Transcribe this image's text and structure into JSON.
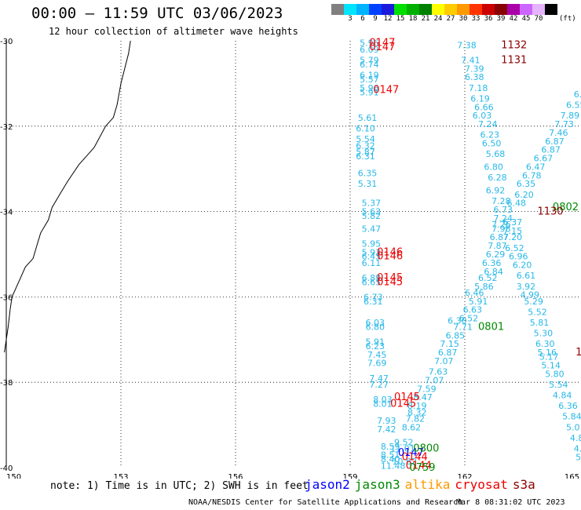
{
  "header": {
    "title": "00:00 – 11:59 UTC 03/06/2023",
    "subtitle": "12 hour collection of altimeter wave heights"
  },
  "legend": {
    "unit": "(ft)",
    "bins": [
      {
        "label": "",
        "color": "#808080"
      },
      {
        "label": "3",
        "color": "#00e5ff"
      },
      {
        "label": "6",
        "color": "#00b4ff"
      },
      {
        "label": "9",
        "color": "#0040ff"
      },
      {
        "label": "12",
        "color": "#1a1adc"
      },
      {
        "label": "15",
        "color": "#00e000"
      },
      {
        "label": "18",
        "color": "#00b000"
      },
      {
        "label": "21",
        "color": "#008000"
      },
      {
        "label": "24",
        "color": "#ffff00"
      },
      {
        "label": "27",
        "color": "#ffcc00"
      },
      {
        "label": "30",
        "color": "#ff9900"
      },
      {
        "label": "33",
        "color": "#ff3300"
      },
      {
        "label": "36",
        "color": "#cc0000"
      },
      {
        "label": "39",
        "color": "#880000"
      },
      {
        "label": "42",
        "color": "#aa00aa"
      },
      {
        "label": "45",
        "color": "#cc66ff"
      },
      {
        "label": "70",
        "color": "#e6b3ff"
      },
      {
        "label": "",
        "color": "#000000"
      }
    ]
  },
  "axes": {
    "lon_ticks": [
      "150",
      "153",
      "156",
      "159",
      "162",
      "165"
    ],
    "lat_ticks": [
      "-30",
      "-32",
      "-34",
      "-36",
      "-38",
      "-40"
    ]
  },
  "map": {
    "lon_range": [
      150,
      165
    ],
    "lat_range": [
      -40,
      -30
    ],
    "coastline": [
      [
        153.25,
        -30
      ],
      [
        153.2,
        -30.3
      ],
      [
        153.0,
        -31.0
      ],
      [
        152.9,
        -31.5
      ],
      [
        152.8,
        -31.8
      ],
      [
        152.6,
        -32.0
      ],
      [
        152.3,
        -32.5
      ],
      [
        152.2,
        -32.6
      ],
      [
        151.9,
        -32.9
      ],
      [
        151.6,
        -33.3
      ],
      [
        151.4,
        -33.6
      ],
      [
        151.2,
        -33.9
      ],
      [
        151.1,
        -34.2
      ],
      [
        150.9,
        -34.5
      ],
      [
        150.8,
        -34.8
      ],
      [
        150.7,
        -35.1
      ],
      [
        150.5,
        -35.3
      ],
      [
        150.3,
        -35.7
      ],
      [
        150.15,
        -36.0
      ],
      [
        150.1,
        -36.3
      ],
      [
        150.05,
        -36.7
      ],
      [
        150.0,
        -37.0
      ],
      [
        149.95,
        -37.3
      ]
    ],
    "colors": {
      "cyan_obs": "#27b8e8",
      "time_red": "#ee0000",
      "time_darkred": "#8b0000",
      "time_green": "#008800",
      "time_blue": "#0000ff",
      "time_black": "#000000"
    },
    "observations": [
      {
        "lon": 159.25,
        "lat": -30.05,
        "text": "5.96"
      },
      {
        "lon": 159.25,
        "lat": -30.2,
        "text": "6.09"
      },
      {
        "lon": 159.25,
        "lat": -30.45,
        "text": "5.79"
      },
      {
        "lon": 159.25,
        "lat": -30.55,
        "text": "6.74"
      },
      {
        "lon": 159.25,
        "lat": -30.8,
        "text": "6.19"
      },
      {
        "lon": 159.25,
        "lat": -30.9,
        "text": "5.57"
      },
      {
        "lon": 159.25,
        "lat": -31.1,
        "text": "5.96"
      },
      {
        "lon": 159.25,
        "lat": -31.2,
        "text": "5.91"
      },
      {
        "lon": 159.2,
        "lat": -31.8,
        "text": "5.61"
      },
      {
        "lon": 159.15,
        "lat": -32.05,
        "text": "6.10"
      },
      {
        "lon": 159.15,
        "lat": -32.3,
        "text": "5.54"
      },
      {
        "lon": 159.15,
        "lat": -32.45,
        "text": "6.32"
      },
      {
        "lon": 159.15,
        "lat": -32.6,
        "text": "5.87"
      },
      {
        "lon": 159.15,
        "lat": -32.7,
        "text": "6.31"
      },
      {
        "lon": 159.2,
        "lat": -33.1,
        "text": "6.35"
      },
      {
        "lon": 159.2,
        "lat": -33.35,
        "text": "5.31"
      },
      {
        "lon": 159.3,
        "lat": -33.8,
        "text": "5.37"
      },
      {
        "lon": 159.3,
        "lat": -34.0,
        "text": "5.63"
      },
      {
        "lon": 159.3,
        "lat": -34.1,
        "text": "5.82"
      },
      {
        "lon": 159.3,
        "lat": -34.4,
        "text": "5.47"
      },
      {
        "lon": 159.3,
        "lat": -34.75,
        "text": "5.95"
      },
      {
        "lon": 159.3,
        "lat": -34.95,
        "text": "5.93"
      },
      {
        "lon": 159.3,
        "lat": -35.05,
        "text": "6.45"
      },
      {
        "lon": 159.3,
        "lat": -35.2,
        "text": "6.11"
      },
      {
        "lon": 159.3,
        "lat": -35.55,
        "text": "6.89"
      },
      {
        "lon": 159.3,
        "lat": -35.65,
        "text": "6.65"
      },
      {
        "lon": 159.35,
        "lat": -36.0,
        "text": "6.73"
      },
      {
        "lon": 159.35,
        "lat": -36.1,
        "text": "6.31"
      },
      {
        "lon": 159.4,
        "lat": -36.6,
        "text": "6.03"
      },
      {
        "lon": 159.4,
        "lat": -36.7,
        "text": "6.80"
      },
      {
        "lon": 159.4,
        "lat": -37.05,
        "text": "5.91"
      },
      {
        "lon": 159.4,
        "lat": -37.15,
        "text": "6.23"
      },
      {
        "lon": 159.45,
        "lat": -37.35,
        "text": "7.45"
      },
      {
        "lon": 159.45,
        "lat": -37.55,
        "text": "7.69"
      },
      {
        "lon": 159.5,
        "lat": -37.9,
        "text": "7.47"
      },
      {
        "lon": 159.5,
        "lat": -38.05,
        "text": "7.27"
      },
      {
        "lon": 159.6,
        "lat": -38.4,
        "text": "8.03"
      },
      {
        "lon": 159.6,
        "lat": -38.5,
        "text": "8.01"
      },
      {
        "lon": 159.7,
        "lat": -38.9,
        "text": "7.93"
      },
      {
        "lon": 159.7,
        "lat": -39.1,
        "text": "7.42"
      },
      {
        "lon": 159.8,
        "lat": -39.5,
        "text": "8.59"
      },
      {
        "lon": 159.8,
        "lat": -39.7,
        "text": "8.51"
      },
      {
        "lon": 159.8,
        "lat": -39.8,
        "text": "8.40"
      },
      {
        "lon": 159.8,
        "lat": -39.95,
        "text": "11.48"
      },
      {
        "lon": 160.15,
        "lat": -39.4,
        "text": "9.52"
      },
      {
        "lon": 160.05,
        "lat": -39.55,
        "text": "11.01"
      },
      {
        "lon": 160.1,
        "lat": -39.85,
        "text": "10.62"
      },
      {
        "lon": 160.35,
        "lat": -39.05,
        "text": "8.62"
      },
      {
        "lon": 160.45,
        "lat": -38.85,
        "text": "7.82"
      },
      {
        "lon": 160.5,
        "lat": -38.7,
        "text": "8.32"
      },
      {
        "lon": 160.5,
        "lat": -38.55,
        "text": "8.19"
      },
      {
        "lon": 160.65,
        "lat": -38.35,
        "text": "8.47"
      },
      {
        "lon": 160.75,
        "lat": -38.15,
        "text": "7.59"
      },
      {
        "lon": 160.95,
        "lat": -37.95,
        "text": "7.07"
      },
      {
        "lon": 161.05,
        "lat": -37.75,
        "text": "7.63"
      },
      {
        "lon": 161.2,
        "lat": -37.5,
        "text": "7.07"
      },
      {
        "lon": 161.3,
        "lat": -37.3,
        "text": "6.87"
      },
      {
        "lon": 161.35,
        "lat": -37.1,
        "text": "7.15"
      },
      {
        "lon": 161.5,
        "lat": -36.9,
        "text": "6.85"
      },
      {
        "lon": 161.7,
        "lat": -36.7,
        "text": "7.71"
      },
      {
        "lon": 161.55,
        "lat": -36.55,
        "text": "6.30"
      },
      {
        "lon": 161.85,
        "lat": -36.5,
        "text": "6.52"
      },
      {
        "lon": 161.95,
        "lat": -36.3,
        "text": "6.63"
      },
      {
        "lon": 162.1,
        "lat": -36.1,
        "text": "5.91"
      },
      {
        "lon": 162.0,
        "lat": -35.9,
        "text": "6.46"
      },
      {
        "lon": 162.25,
        "lat": -35.75,
        "text": "5.86"
      },
      {
        "lon": 162.35,
        "lat": -35.55,
        "text": "6.52"
      },
      {
        "lon": 162.5,
        "lat": -35.4,
        "text": "6.84"
      },
      {
        "lon": 162.45,
        "lat": -35.2,
        "text": "6.36"
      },
      {
        "lon": 162.55,
        "lat": -35.0,
        "text": "6.29"
      },
      {
        "lon": 162.6,
        "lat": -34.8,
        "text": "7.87"
      },
      {
        "lon": 162.65,
        "lat": -34.6,
        "text": "6.87"
      },
      {
        "lon": 162.7,
        "lat": -34.4,
        "text": "7.98"
      },
      {
        "lon": 162.7,
        "lat": -34.3,
        "text": "7.26"
      },
      {
        "lon": 162.75,
        "lat": -34.15,
        "text": "7.24"
      },
      {
        "lon": 162.75,
        "lat": -33.95,
        "text": "6.73"
      },
      {
        "lon": 162.7,
        "lat": -33.75,
        "text": "7.28"
      },
      {
        "lon": 162.55,
        "lat": -33.5,
        "text": "6.92"
      },
      {
        "lon": 162.6,
        "lat": -33.2,
        "text": "6.28"
      },
      {
        "lon": 162.5,
        "lat": -32.95,
        "text": "6.80"
      },
      {
        "lon": 162.55,
        "lat": -32.65,
        "text": "5.68"
      },
      {
        "lon": 162.45,
        "lat": -32.4,
        "text": "6.50"
      },
      {
        "lon": 162.4,
        "lat": -32.2,
        "text": "6.23"
      },
      {
        "lon": 162.35,
        "lat": -31.95,
        "text": "7.24"
      },
      {
        "lon": 162.2,
        "lat": -31.75,
        "text": "6.03"
      },
      {
        "lon": 162.25,
        "lat": -31.55,
        "text": "6.66"
      },
      {
        "lon": 162.15,
        "lat": -31.35,
        "text": "6.19"
      },
      {
        "lon": 162.1,
        "lat": -31.1,
        "text": "7.18"
      },
      {
        "lon": 162.0,
        "lat": -30.85,
        "text": "6.38"
      },
      {
        "lon": 162.0,
        "lat": -30.65,
        "text": "7.39"
      },
      {
        "lon": 161.9,
        "lat": -30.45,
        "text": "7.41"
      },
      {
        "lon": 161.8,
        "lat": -30.1,
        "text": "7.38"
      },
      {
        "lon": 163.0,
        "lat": -34.45,
        "text": "7.15"
      },
      {
        "lon": 163.0,
        "lat": -34.6,
        "text": "7.20"
      },
      {
        "lon": 163.05,
        "lat": -34.85,
        "text": "6.52"
      },
      {
        "lon": 163.15,
        "lat": -35.05,
        "text": "6.96"
      },
      {
        "lon": 163.25,
        "lat": -35.25,
        "text": "6.20"
      },
      {
        "lon": 163.35,
        "lat": -35.5,
        "text": "6.61"
      },
      {
        "lon": 163.35,
        "lat": -35.75,
        "text": "3.92"
      },
      {
        "lon": 163.45,
        "lat": -35.95,
        "text": "4.99"
      },
      {
        "lon": 163.55,
        "lat": -36.1,
        "text": "5.29"
      },
      {
        "lon": 163.65,
        "lat": -36.35,
        "text": "5.52"
      },
      {
        "lon": 163.7,
        "lat": -36.6,
        "text": "5.81"
      },
      {
        "lon": 163.8,
        "lat": -36.85,
        "text": "5.30"
      },
      {
        "lon": 163.85,
        "lat": -37.1,
        "text": "6.30"
      },
      {
        "lon": 163.9,
        "lat": -37.3,
        "text": "5.16"
      },
      {
        "lon": 163.95,
        "lat": -37.4,
        "text": "5.17"
      },
      {
        "lon": 164.0,
        "lat": -37.6,
        "text": "5.14"
      },
      {
        "lon": 164.1,
        "lat": -37.8,
        "text": "5.80"
      },
      {
        "lon": 164.2,
        "lat": -38.05,
        "text": "5.54"
      },
      {
        "lon": 164.3,
        "lat": -38.3,
        "text": "4.84"
      },
      {
        "lon": 164.45,
        "lat": -38.55,
        "text": "6.36"
      },
      {
        "lon": 164.55,
        "lat": -38.8,
        "text": "5.84"
      },
      {
        "lon": 164.65,
        "lat": -39.05,
        "text": "5.0"
      },
      {
        "lon": 164.75,
        "lat": -39.3,
        "text": "4.8"
      },
      {
        "lon": 164.85,
        "lat": -39.55,
        "text": "4."
      },
      {
        "lon": 164.9,
        "lat": -39.75,
        "text": "5."
      },
      {
        "lon": 163.0,
        "lat": -34.25,
        "text": "6.37"
      },
      {
        "lon": 163.1,
        "lat": -33.8,
        "text": "6.48"
      },
      {
        "lon": 163.3,
        "lat": -33.6,
        "text": "6.20"
      },
      {
        "lon": 163.35,
        "lat": -33.35,
        "text": "6.35"
      },
      {
        "lon": 163.5,
        "lat": -33.15,
        "text": "6.78"
      },
      {
        "lon": 163.6,
        "lat": -32.95,
        "text": "6.47"
      },
      {
        "lon": 163.8,
        "lat": -32.75,
        "text": "6.67"
      },
      {
        "lon": 164.0,
        "lat": -32.55,
        "text": "6.87"
      },
      {
        "lon": 164.1,
        "lat": -32.35,
        "text": "6.87"
      },
      {
        "lon": 164.2,
        "lat": -32.15,
        "text": "7.46"
      },
      {
        "lon": 164.35,
        "lat": -31.95,
        "text": "7.73"
      },
      {
        "lon": 164.5,
        "lat": -31.75,
        "text": "7.89"
      },
      {
        "lon": 164.65,
        "lat": -31.5,
        "text": "6.55"
      },
      {
        "lon": 164.85,
        "lat": -31.25,
        "text": "6."
      }
    ],
    "times": [
      {
        "lon": 159.5,
        "lat": -30.05,
        "text": "0147",
        "tone": "time_red"
      },
      {
        "lon": 159.5,
        "lat": -30.15,
        "text": "0147",
        "tone": "time_red"
      },
      {
        "lon": 159.6,
        "lat": -31.15,
        "text": "0147",
        "tone": "time_red"
      },
      {
        "lon": 159.7,
        "lat": -34.95,
        "text": "0146",
        "tone": "time_red"
      },
      {
        "lon": 159.7,
        "lat": -35.05,
        "text": "0146",
        "tone": "time_red"
      },
      {
        "lon": 159.7,
        "lat": -35.55,
        "text": "0145",
        "tone": "time_red"
      },
      {
        "lon": 159.7,
        "lat": -35.65,
        "text": "0145",
        "tone": "time_red"
      },
      {
        "lon": 160.15,
        "lat": -38.35,
        "text": "0145",
        "tone": "time_red"
      },
      {
        "lon": 160.05,
        "lat": -38.5,
        "text": "0145",
        "tone": "time_red"
      },
      {
        "lon": 160.35,
        "lat": -39.75,
        "text": "0144",
        "tone": "time_red"
      },
      {
        "lon": 160.45,
        "lat": -39.95,
        "text": "0144",
        "tone": "time_red"
      },
      {
        "lon": 160.25,
        "lat": -39.65,
        "text": "0147",
        "tone": "time_blue"
      },
      {
        "lon": 160.65,
        "lat": -39.55,
        "text": "0800",
        "tone": "time_green"
      },
      {
        "lon": 160.55,
        "lat": -40.0,
        "text": "0759",
        "tone": "time_green"
      },
      {
        "lon": 162.35,
        "lat": -36.7,
        "text": "0801",
        "tone": "time_green"
      },
      {
        "lon": 164.3,
        "lat": -33.9,
        "text": "0802",
        "tone": "time_green"
      },
      {
        "lon": 163.9,
        "lat": -34.0,
        "text": "1130",
        "tone": "time_darkred"
      },
      {
        "lon": 162.95,
        "lat": -30.1,
        "text": "1132",
        "tone": "time_darkred"
      },
      {
        "lon": 162.95,
        "lat": -30.45,
        "text": "1131",
        "tone": "time_darkred"
      },
      {
        "lon": 164.9,
        "lat": -37.3,
        "text": "1",
        "tone": "time_darkred"
      }
    ]
  },
  "footer": {
    "note": "note: 1) Time is in UTC; 2) SWH is in feet",
    "satellites": [
      {
        "name": "jason2",
        "color": "#0000ff"
      },
      {
        "name": "jason3",
        "color": "#008800"
      },
      {
        "name": "altika",
        "color": "#ff9900"
      },
      {
        "name": "cryosat",
        "color": "#ee0000"
      },
      {
        "name": "s3a",
        "color": "#8b0000"
      }
    ],
    "credit": "NOAA/NESDIS Center for Satellite Applications and Research",
    "generated": "Mar  8 08:31:02 UTC 2023"
  }
}
